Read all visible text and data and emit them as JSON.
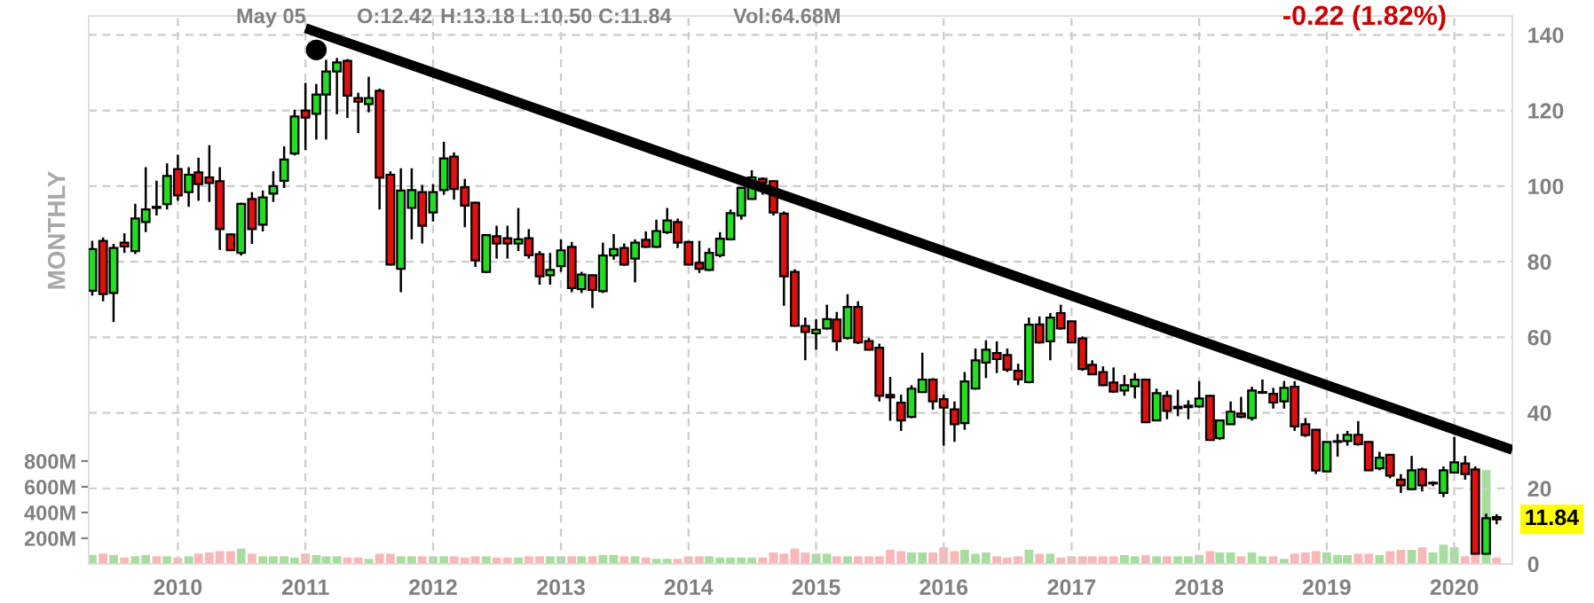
{
  "chart_data": {
    "type": "candlestick",
    "annotations": [
      "May 05",
      "O:12.42",
      "H:13.18",
      "L:10.50",
      "C:11.84",
      "Vol:64.68M",
      "-0.22 (1.82%)",
      "11.84",
      "MONTHLY"
    ],
    "x": [
      "2009-05",
      "2009-06",
      "2009-07",
      "2009-08",
      "2009-09",
      "2009-10",
      "2009-11",
      "2009-12",
      "2010-01",
      "2010-02",
      "2010-03",
      "2010-04",
      "2010-05",
      "2010-06",
      "2010-07",
      "2010-08",
      "2010-09",
      "2010-10",
      "2010-11",
      "2010-12",
      "2011-01",
      "2011-02",
      "2011-03",
      "2011-04",
      "2011-05",
      "2011-06",
      "2011-07",
      "2011-08",
      "2011-09",
      "2011-10",
      "2011-11",
      "2011-12",
      "2012-01",
      "2012-02",
      "2012-03",
      "2012-04",
      "2012-05",
      "2012-06",
      "2012-07",
      "2012-08",
      "2012-09",
      "2012-10",
      "2012-11",
      "2012-12",
      "2013-01",
      "2013-02",
      "2013-03",
      "2013-04",
      "2013-05",
      "2013-06",
      "2013-07",
      "2013-08",
      "2013-09",
      "2013-10",
      "2013-11",
      "2013-12",
      "2014-01",
      "2014-02",
      "2014-03",
      "2014-04",
      "2014-05",
      "2014-06",
      "2014-07",
      "2014-08",
      "2014-09",
      "2014-10",
      "2014-11",
      "2014-12",
      "2015-01",
      "2015-02",
      "2015-03",
      "2015-04",
      "2015-05",
      "2015-06",
      "2015-07",
      "2015-08",
      "2015-09",
      "2015-10",
      "2015-11",
      "2015-12",
      "2016-01",
      "2016-02",
      "2016-03",
      "2016-04",
      "2016-05",
      "2016-06",
      "2016-07",
      "2016-08",
      "2016-09",
      "2016-10",
      "2016-11",
      "2016-12",
      "2017-01",
      "2017-02",
      "2017-03",
      "2017-04",
      "2017-05",
      "2017-06",
      "2017-07",
      "2017-08",
      "2017-09",
      "2017-10",
      "2017-11",
      "2017-12",
      "2018-01",
      "2018-02",
      "2018-03",
      "2018-04",
      "2018-05",
      "2018-06",
      "2018-07",
      "2018-08",
      "2018-09",
      "2018-10",
      "2018-11",
      "2018-12",
      "2019-01",
      "2019-02",
      "2019-03",
      "2019-04",
      "2019-05",
      "2019-06",
      "2019-07",
      "2019-08",
      "2019-09",
      "2019-10",
      "2019-11",
      "2019-12",
      "2020-01",
      "2020-02",
      "2020-03",
      "2020-04",
      "2020-05"
    ],
    "series": [
      {
        "ohlc": [
          [
            72.3,
            85.5,
            71,
            83.3
          ],
          [
            85.5,
            86.4,
            69.5,
            71.4
          ],
          [
            71.7,
            84.7,
            64,
            83.6
          ],
          [
            85,
            87.5,
            82.3,
            84
          ],
          [
            82.8,
            95.3,
            82,
            91.4
          ],
          [
            90.5,
            105,
            87.8,
            93.8
          ],
          [
            94.5,
            101.4,
            92.2,
            94.2
          ],
          [
            95.2,
            106,
            93.8,
            102.7
          ],
          [
            104.5,
            108.3,
            96.1,
            97.5
          ],
          [
            98.4,
            105,
            94.5,
            103
          ],
          [
            103.6,
            107.5,
            96.1,
            100.5
          ],
          [
            102.3,
            110.8,
            95.8,
            100.8
          ],
          [
            101.3,
            105,
            83.1,
            88.6
          ],
          [
            87.2,
            87.5,
            82.8,
            83
          ],
          [
            82.3,
            95.6,
            81.6,
            95.3
          ],
          [
            96.6,
            98.4,
            84.7,
            88.6
          ],
          [
            89.8,
            98.8,
            88,
            97
          ],
          [
            98,
            103.9,
            95.8,
            100
          ],
          [
            101.4,
            110.5,
            99.5,
            107
          ],
          [
            108.6,
            120.2,
            108.1,
            118.4
          ],
          [
            120,
            127.3,
            109.5,
            118.1
          ],
          [
            119.1,
            127,
            112.3,
            124.2
          ],
          [
            124.2,
            133.4,
            112.3,
            130.3
          ],
          [
            130.3,
            133.9,
            119,
            132.7
          ],
          [
            133.1,
            133.6,
            118,
            123.9
          ],
          [
            123.3,
            124.7,
            114,
            122.3
          ],
          [
            121.7,
            128.9,
            119.5,
            123.3
          ],
          [
            125.2,
            125.8,
            93.8,
            102.2
          ],
          [
            103,
            103.9,
            79,
            79.2
          ],
          [
            78.1,
            104.7,
            71.9,
            98.8
          ],
          [
            94.2,
            104.7,
            85.9,
            98.9
          ],
          [
            98.4,
            100.3,
            84.8,
            89.5
          ],
          [
            93,
            100.5,
            90.6,
            98.4
          ],
          [
            98.9,
            111.7,
            97.7,
            107.3
          ],
          [
            107.8,
            108.9,
            96.4,
            99.2
          ],
          [
            99.7,
            101.9,
            89.1,
            94.8
          ],
          [
            95.6,
            95.8,
            78.6,
            80.3
          ],
          [
            77.3,
            87.2,
            77,
            87
          ],
          [
            86.7,
            89.5,
            80.8,
            84.8
          ],
          [
            86.2,
            89.5,
            80.8,
            84.8
          ],
          [
            84.8,
            94.2,
            82.8,
            85.9
          ],
          [
            86.2,
            88.6,
            80.8,
            81.7
          ],
          [
            82,
            82.8,
            73.9,
            76.1
          ],
          [
            76.4,
            82.3,
            73.9,
            77.8
          ],
          [
            78.8,
            85.9,
            77.3,
            83
          ],
          [
            83.9,
            85.2,
            71.9,
            73
          ],
          [
            72.7,
            77.3,
            71.7,
            76.6
          ],
          [
            76.4,
            76.6,
            67.7,
            72.5
          ],
          [
            72.2,
            85,
            71.7,
            81.6
          ],
          [
            81.6,
            87.3,
            80.5,
            83.3
          ],
          [
            83.6,
            84.8,
            78.9,
            79.2
          ],
          [
            80.8,
            85.9,
            74.5,
            85
          ],
          [
            85.8,
            88,
            83.6,
            83.9
          ],
          [
            83.9,
            91.1,
            83.6,
            88.1
          ],
          [
            87.8,
            94.2,
            87.3,
            90.9
          ],
          [
            90.5,
            91.4,
            83.6,
            85
          ],
          [
            85.2,
            85.5,
            79,
            79.2
          ],
          [
            79.7,
            85.5,
            77,
            78.1
          ],
          [
            77.8,
            83.6,
            77.5,
            82.3
          ],
          [
            81.7,
            87.8,
            81.1,
            86.1
          ],
          [
            85.9,
            93.8,
            85.6,
            92.8
          ],
          [
            92.2,
            99.7,
            91.1,
            99.5
          ],
          [
            96.6,
            104.2,
            96.4,
            102.3
          ],
          [
            101.9,
            102.3,
            97.7,
            100.9
          ],
          [
            101.3,
            101.5,
            92.2,
            93
          ],
          [
            92.7,
            93.3,
            68.3,
            76.1
          ],
          [
            77.3,
            78,
            62.8,
            63
          ],
          [
            63,
            65.2,
            53.9,
            61.4
          ],
          [
            61,
            64.8,
            56.7,
            62
          ],
          [
            62.3,
            68.6,
            62,
            64.8
          ],
          [
            64.7,
            66.7,
            56.4,
            58.9
          ],
          [
            59.8,
            71.4,
            59.4,
            68
          ],
          [
            68,
            69.5,
            58.2,
            58.6
          ],
          [
            59,
            59.8,
            56.5,
            56.7
          ],
          [
            57.2,
            58.3,
            43,
            44.5
          ],
          [
            44.7,
            49.5,
            37.9,
            44.1
          ],
          [
            42.7,
            44.8,
            35.2,
            38
          ],
          [
            38.9,
            47.3,
            38.6,
            46.4
          ],
          [
            45.5,
            55.9,
            45.3,
            48.8
          ],
          [
            48.8,
            49.2,
            40.8,
            43
          ],
          [
            43.6,
            44.8,
            31.3,
            41.4
          ],
          [
            40.9,
            43,
            32.3,
            37
          ],
          [
            37.3,
            50.8,
            35.5,
            48.3
          ],
          [
            46.4,
            57,
            46.1,
            53.9
          ],
          [
            53.3,
            59.2,
            49.2,
            56.7
          ],
          [
            55.8,
            58.9,
            50.5,
            54.2
          ],
          [
            55.3,
            57,
            50.8,
            51.4
          ],
          [
            51.1,
            53,
            47.3,
            48.8
          ],
          [
            48.1,
            65.2,
            47.8,
            63.3
          ],
          [
            63.4,
            65.5,
            58.3,
            58.6
          ],
          [
            58.9,
            66.4,
            53.9,
            65.2
          ],
          [
            66.4,
            68.6,
            62,
            62.3
          ],
          [
            64.2,
            64.4,
            58.4,
            58.6
          ],
          [
            59.7,
            60.2,
            51.1,
            51.6
          ],
          [
            52.7,
            53.9,
            50,
            50.2
          ],
          [
            50.8,
            52.3,
            47.1,
            47.3
          ],
          [
            48,
            52,
            45.3,
            45.6
          ],
          [
            45.9,
            50,
            44.5,
            47.3
          ],
          [
            47,
            50.5,
            43.8,
            48.8
          ],
          [
            48.8,
            49,
            37.3,
            37.5
          ],
          [
            38,
            46.4,
            37.8,
            45.2
          ],
          [
            44.5,
            45.8,
            38.3,
            40.5
          ],
          [
            41.2,
            46.1,
            39.1,
            41.6
          ],
          [
            41.5,
            43.3,
            38.3,
            41.9
          ],
          [
            41.7,
            48.4,
            41.4,
            43.8
          ],
          [
            44.5,
            44.7,
            32.6,
            32.8
          ],
          [
            33.3,
            38.2,
            32.8,
            38
          ],
          [
            37,
            43,
            36.8,
            40.3
          ],
          [
            39.8,
            44.2,
            38.6,
            38.9
          ],
          [
            38.6,
            46.9,
            37.9,
            45.9
          ],
          [
            45.3,
            48.8,
            45,
            45.5
          ],
          [
            45,
            46.6,
            41.1,
            42.7
          ],
          [
            43,
            48.4,
            41.1,
            46.6
          ],
          [
            46.9,
            48.4,
            35.2,
            36.4
          ],
          [
            37,
            38.6,
            33.6,
            34.1
          ],
          [
            35.5,
            35.7,
            23.8,
            24.7
          ],
          [
            24.5,
            32.5,
            24.3,
            32.3
          ],
          [
            32.3,
            34.4,
            28.4,
            32.5
          ],
          [
            32.5,
            35.2,
            31.3,
            34.2
          ],
          [
            34.2,
            37.8,
            31.3,
            31.7
          ],
          [
            32.3,
            32.5,
            24.6,
            24.8
          ],
          [
            25.3,
            29.7,
            24.8,
            28.1
          ],
          [
            28.9,
            29.1,
            22.7,
            23.4
          ],
          [
            22.3,
            23.8,
            18.8,
            20.8
          ],
          [
            19.8,
            28.6,
            19.5,
            24.8
          ],
          [
            25,
            25.5,
            19.2,
            20.8
          ],
          [
            21.3,
            21.9,
            20.6,
            21.5
          ],
          [
            18.8,
            25.8,
            17.7,
            24.8
          ],
          [
            24.2,
            33.6,
            24,
            26.9
          ],
          [
            26.6,
            28.6,
            22.3,
            23.8
          ],
          [
            25,
            25.8,
            2.5,
            2.7
          ],
          [
            2.7,
            13.3,
            2.5,
            12.1
          ],
          [
            12.42,
            13.18,
            10.5,
            11.84
          ]
        ],
        "colors": [
          "#22dd22",
          "#e01010",
          "#22dd22",
          "#e01010",
          "#22dd22",
          "#22dd22",
          "#e01010",
          "#22dd22",
          "#e01010",
          "#22dd22",
          "#e01010",
          "#e01010",
          "#e01010",
          "#e01010",
          "#22dd22",
          "#e01010",
          "#22dd22",
          "#22dd22",
          "#22dd22",
          "#22dd22",
          "#e01010",
          "#22dd22",
          "#22dd22",
          "#22dd22",
          "#e01010",
          "#e01010",
          "#22dd22",
          "#e01010",
          "#e01010",
          "#22dd22",
          "#22dd22",
          "#e01010",
          "#22dd22",
          "#22dd22",
          "#e01010",
          "#e01010",
          "#e01010",
          "#22dd22",
          "#e01010",
          "#e01010",
          "#22dd22",
          "#e01010",
          "#e01010",
          "#22dd22",
          "#22dd22",
          "#e01010",
          "#22dd22",
          "#e01010",
          "#22dd22",
          "#22dd22",
          "#e01010",
          "#22dd22",
          "#e01010",
          "#22dd22",
          "#22dd22",
          "#e01010",
          "#e01010",
          "#e01010",
          "#22dd22",
          "#22dd22",
          "#22dd22",
          "#22dd22",
          "#22dd22",
          "#e01010",
          "#e01010",
          "#e01010",
          "#e01010",
          "#e01010",
          "#22dd22",
          "#22dd22",
          "#e01010",
          "#22dd22",
          "#e01010",
          "#e01010",
          "#e01010",
          "#e01010",
          "#e01010",
          "#22dd22",
          "#22dd22",
          "#e01010",
          "#e01010",
          "#e01010",
          "#22dd22",
          "#22dd22",
          "#22dd22",
          "#e01010",
          "#e01010",
          "#e01010",
          "#22dd22",
          "#e01010",
          "#22dd22",
          "#e01010",
          "#e01010",
          "#e01010",
          "#e01010",
          "#e01010",
          "#e01010",
          "#22dd22",
          "#22dd22",
          "#e01010",
          "#22dd22",
          "#e01010",
          "#22dd22",
          "#22dd22",
          "#22dd22",
          "#e01010",
          "#22dd22",
          "#22dd22",
          "#e01010",
          "#22dd22",
          "#22dd22",
          "#e01010",
          "#22dd22",
          "#e01010",
          "#e01010",
          "#e01010",
          "#22dd22",
          "#22dd22",
          "#22dd22",
          "#e01010",
          "#e01010",
          "#22dd22",
          "#e01010",
          "#e01010",
          "#22dd22",
          "#e01010",
          "#22dd22",
          "#22dd22",
          "#22dd22",
          "#e01010",
          "#e01010",
          "#22dd22",
          "#e01010"
        ]
      },
      {
        "type": "bar",
        "axis": "y2",
        "values": [
          70,
          80,
          70,
          50,
          60,
          70,
          60,
          60,
          50,
          60,
          80,
          90,
          100,
          100,
          120,
          80,
          60,
          60,
          60,
          50,
          80,
          70,
          60,
          60,
          50,
          50,
          40,
          80,
          80,
          60,
          60,
          60,
          60,
          60,
          60,
          50,
          60,
          60,
          50,
          50,
          50,
          60,
          60,
          60,
          60,
          60,
          60,
          60,
          70,
          70,
          60,
          60,
          50,
          40,
          40,
          40,
          60,
          60,
          60,
          50,
          50,
          50,
          50,
          50,
          90,
          80,
          120,
          90,
          80,
          80,
          60,
          60,
          60,
          60,
          60,
          110,
          100,
          90,
          90,
          90,
          130,
          100,
          110,
          80,
          90,
          60,
          50,
          60,
          110,
          80,
          80,
          50,
          60,
          60,
          60,
          60,
          60,
          70,
          60,
          70,
          60,
          60,
          60,
          60,
          70,
          100,
          90,
          90,
          60,
          90,
          60,
          60,
          40,
          80,
          90,
          100,
          90,
          70,
          70,
          80,
          80,
          70,
          100,
          110,
          110,
          130,
          90,
          150,
          130,
          60,
          80,
          730,
          50
        ],
        "colors": [
          "#a8dda0",
          "#f8b8b8",
          "#a8dda0",
          "#f8b8b8",
          "#a8dda0",
          "#a8dda0",
          "#f8b8b8",
          "#a8dda0",
          "#f8b8b8",
          "#a8dda0",
          "#f8b8b8",
          "#f8b8b8",
          "#f8b8b8",
          "#f8b8b8",
          "#a8dda0",
          "#f8b8b8",
          "#a8dda0",
          "#a8dda0",
          "#a8dda0",
          "#a8dda0",
          "#f8b8b8",
          "#a8dda0",
          "#a8dda0",
          "#a8dda0",
          "#f8b8b8",
          "#f8b8b8",
          "#a8dda0",
          "#f8b8b8",
          "#f8b8b8",
          "#a8dda0",
          "#a8dda0",
          "#f8b8b8",
          "#a8dda0",
          "#a8dda0",
          "#f8b8b8",
          "#f8b8b8",
          "#f8b8b8",
          "#a8dda0",
          "#f8b8b8",
          "#f8b8b8",
          "#a8dda0",
          "#f8b8b8",
          "#f8b8b8",
          "#a8dda0",
          "#a8dda0",
          "#f8b8b8",
          "#a8dda0",
          "#f8b8b8",
          "#a8dda0",
          "#a8dda0",
          "#f8b8b8",
          "#a8dda0",
          "#f8b8b8",
          "#a8dda0",
          "#a8dda0",
          "#f8b8b8",
          "#f8b8b8",
          "#f8b8b8",
          "#a8dda0",
          "#a8dda0",
          "#a8dda0",
          "#a8dda0",
          "#a8dda0",
          "#f8b8b8",
          "#f8b8b8",
          "#f8b8b8",
          "#f8b8b8",
          "#f8b8b8",
          "#a8dda0",
          "#a8dda0",
          "#f8b8b8",
          "#a8dda0",
          "#f8b8b8",
          "#f8b8b8",
          "#f8b8b8",
          "#f8b8b8",
          "#f8b8b8",
          "#a8dda0",
          "#a8dda0",
          "#f8b8b8",
          "#f8b8b8",
          "#f8b8b8",
          "#a8dda0",
          "#a8dda0",
          "#a8dda0",
          "#f8b8b8",
          "#f8b8b8",
          "#f8b8b8",
          "#a8dda0",
          "#f8b8b8",
          "#a8dda0",
          "#f8b8b8",
          "#f8b8b8",
          "#f8b8b8",
          "#f8b8b8",
          "#f8b8b8",
          "#f8b8b8",
          "#a8dda0",
          "#a8dda0",
          "#f8b8b8",
          "#a8dda0",
          "#f8b8b8",
          "#a8dda0",
          "#a8dda0",
          "#a8dda0",
          "#f8b8b8",
          "#a8dda0",
          "#a8dda0",
          "#f8b8b8",
          "#a8dda0",
          "#a8dda0",
          "#f8b8b8",
          "#a8dda0",
          "#f8b8b8",
          "#f8b8b8",
          "#f8b8b8",
          "#a8dda0",
          "#a8dda0",
          "#a8dda0",
          "#f8b8b8",
          "#f8b8b8",
          "#a8dda0",
          "#f8b8b8",
          "#f8b8b8",
          "#a8dda0",
          "#f8b8b8",
          "#a8dda0",
          "#a8dda0",
          "#a8dda0",
          "#f8b8b8",
          "#f8b8b8",
          "#a8dda0",
          "#f8b8b8"
        ]
      },
      {
        "type": "line",
        "x": [
          "2011-01",
          "2020-06-15"
        ],
        "values": [
          141.8,
          30.2
        ],
        "color": "#000000",
        "line_style": "solid"
      },
      {
        "type": "scatter",
        "x": [
          "2011-02"
        ],
        "values": [
          136
        ],
        "color": "#000000",
        "marker": "circle"
      }
    ],
    "xlim": [
      "2009-04-21",
      "2020-06-15"
    ],
    "xticks": [
      "2010",
      "2011",
      "2012",
      "2013",
      "2014",
      "2015",
      "2016",
      "2017",
      "2018",
      "2019",
      "2020"
    ],
    "ylim": [
      0,
      145
    ],
    "yticks": [
      0,
      20,
      40,
      60,
      80,
      100,
      120,
      140
    ],
    "y2lim": [
      0,
      4260
    ],
    "y2ticks": [
      {
        "value": 200,
        "label": "200M"
      },
      {
        "value": 400,
        "label": "400M"
      },
      {
        "value": 600,
        "label": "600M"
      },
      {
        "value": 800,
        "label": "800M"
      }
    ],
    "grid": true
  }
}
